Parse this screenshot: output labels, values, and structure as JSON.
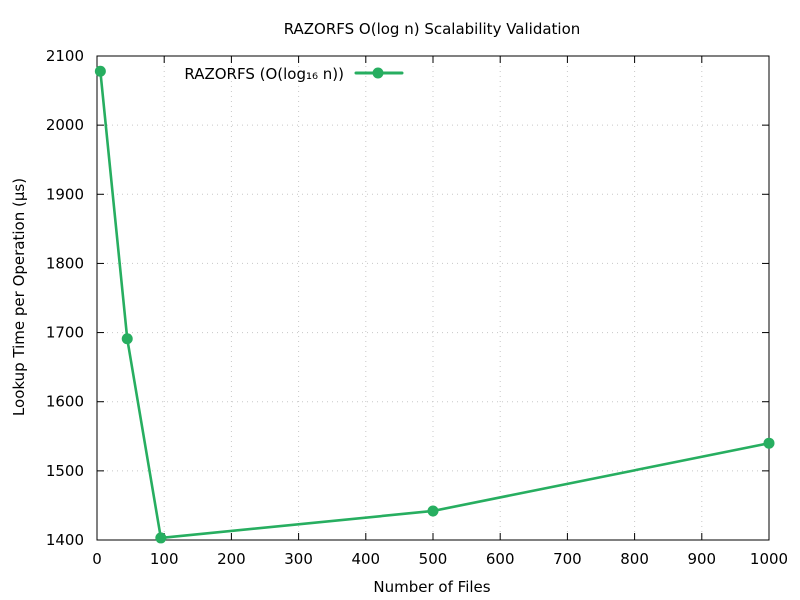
{
  "chart_data": {
    "type": "line",
    "title": "RAZORFS O(log n) Scalability Validation",
    "xlabel": "Number of Files",
    "ylabel": "Lookup Time per Operation (µs)",
    "xlim": [
      0,
      1000
    ],
    "ylim": [
      1400,
      2100
    ],
    "xticks": [
      0,
      100,
      200,
      300,
      400,
      500,
      600,
      700,
      800,
      900,
      1000
    ],
    "yticks": [
      1400,
      1500,
      1600,
      1700,
      1800,
      1900,
      2000,
      2100
    ],
    "grid": true,
    "legend_position": "top-left",
    "series": [
      {
        "name": "RAZORFS (O(log₁₆ n))",
        "color": "#27ae60",
        "marker": "circle",
        "x": [
          5,
          45,
          95,
          500,
          1000
        ],
        "y": [
          2078,
          1691,
          1403,
          1442,
          1540
        ]
      }
    ]
  }
}
